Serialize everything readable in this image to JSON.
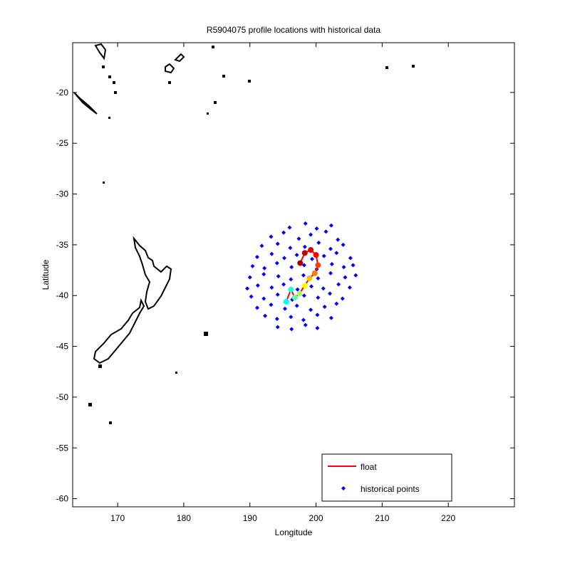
{
  "chart_data": {
    "type": "scatter",
    "title": "R5904075 profile locations with historical data",
    "x_label": "Longitude",
    "y_label": "Latitude",
    "xlim": [
      163.2,
      230
    ],
    "ylim": [
      -60.8,
      -15.1
    ],
    "xticks": [
      170,
      180,
      190,
      200,
      210,
      220
    ],
    "yticks": [
      -20,
      -25,
      -30,
      -35,
      -40,
      -45,
      -50,
      -55,
      -60
    ],
    "legend": "lower right",
    "series": [
      {
        "name": "float",
        "color": "#ff0000",
        "x": [
          195.5,
          196.2,
          196.8,
          197.5,
          198.3,
          199.0,
          199.8,
          200.3,
          200.0,
          199.2,
          198.3,
          197.6
        ],
        "values": [
          -40.6,
          -39.4,
          -40.2,
          -39.8,
          -39.0,
          -38.3,
          -37.8,
          -37.0,
          -36.0,
          -35.5,
          -35.8,
          -36.8
        ],
        "marker_colors": [
          "#00ffff",
          "#20ffdf",
          "#60ff9f",
          "#a0ff60",
          "#ffff00",
          "#ffc000",
          "#ff8000",
          "#ff4000",
          "#ff0000",
          "#e00000",
          "#c00000",
          "#a00000"
        ]
      },
      {
        "name": "historical points",
        "color": "#0000ff",
        "x": [
          196,
          198.4,
          200.1,
          202.3,
          193.2,
          195.1,
          197.4,
          199.2,
          201.5,
          203.3,
          191.8,
          194.2,
          196.1,
          198.3,
          200.4,
          202.2,
          204.1,
          191.1,
          193.3,
          195.2,
          197.1,
          199.4,
          201.2,
          203.1,
          205.2,
          190.4,
          192.2,
          194.1,
          196.3,
          198.2,
          200.1,
          202.4,
          204.2,
          205.6,
          190.0,
          192.1,
          194.3,
          196.2,
          198.1,
          200.3,
          202.2,
          204.4,
          206.0,
          189.6,
          191.2,
          193.3,
          195.1,
          197.2,
          199.3,
          201.1,
          203.4,
          205.1,
          190.2,
          192.1,
          194.2,
          196.4,
          198.2,
          200.3,
          202.1,
          204.0,
          191.1,
          193.2,
          195.3,
          197.1,
          199.2,
          201.3,
          203.1,
          192.3,
          194.1,
          196.2,
          198.1,
          200.2,
          202.3,
          194.2,
          196.3,
          198.4,
          200.2
        ],
        "values": [
          -33.3,
          -32.9,
          -33.4,
          -33.1,
          -34.2,
          -33.8,
          -34.4,
          -34.0,
          -33.7,
          -34.5,
          -35.1,
          -34.9,
          -35.3,
          -35.2,
          -34.8,
          -35.4,
          -35.0,
          -36.2,
          -35.9,
          -36.3,
          -36.0,
          -36.4,
          -36.1,
          -35.8,
          -36.3,
          -37.1,
          -37.3,
          -36.8,
          -37.2,
          -37.0,
          -37.4,
          -36.9,
          -37.2,
          -37.0,
          -38.2,
          -37.9,
          -38.1,
          -38.4,
          -38.0,
          -38.3,
          -37.8,
          -38.2,
          -38.0,
          -39.3,
          -39.0,
          -39.2,
          -38.9,
          -39.4,
          -39.1,
          -39.3,
          -38.9,
          -39.2,
          -40.1,
          -40.3,
          -39.9,
          -40.4,
          -40.0,
          -40.2,
          -39.8,
          -40.3,
          -41.2,
          -40.9,
          -41.3,
          -41.0,
          -41.4,
          -41.1,
          -40.8,
          -42.0,
          -42.3,
          -42.1,
          -42.4,
          -41.9,
          -42.2,
          -43.1,
          -43.3,
          -42.9,
          -43.2
        ]
      }
    ]
  }
}
